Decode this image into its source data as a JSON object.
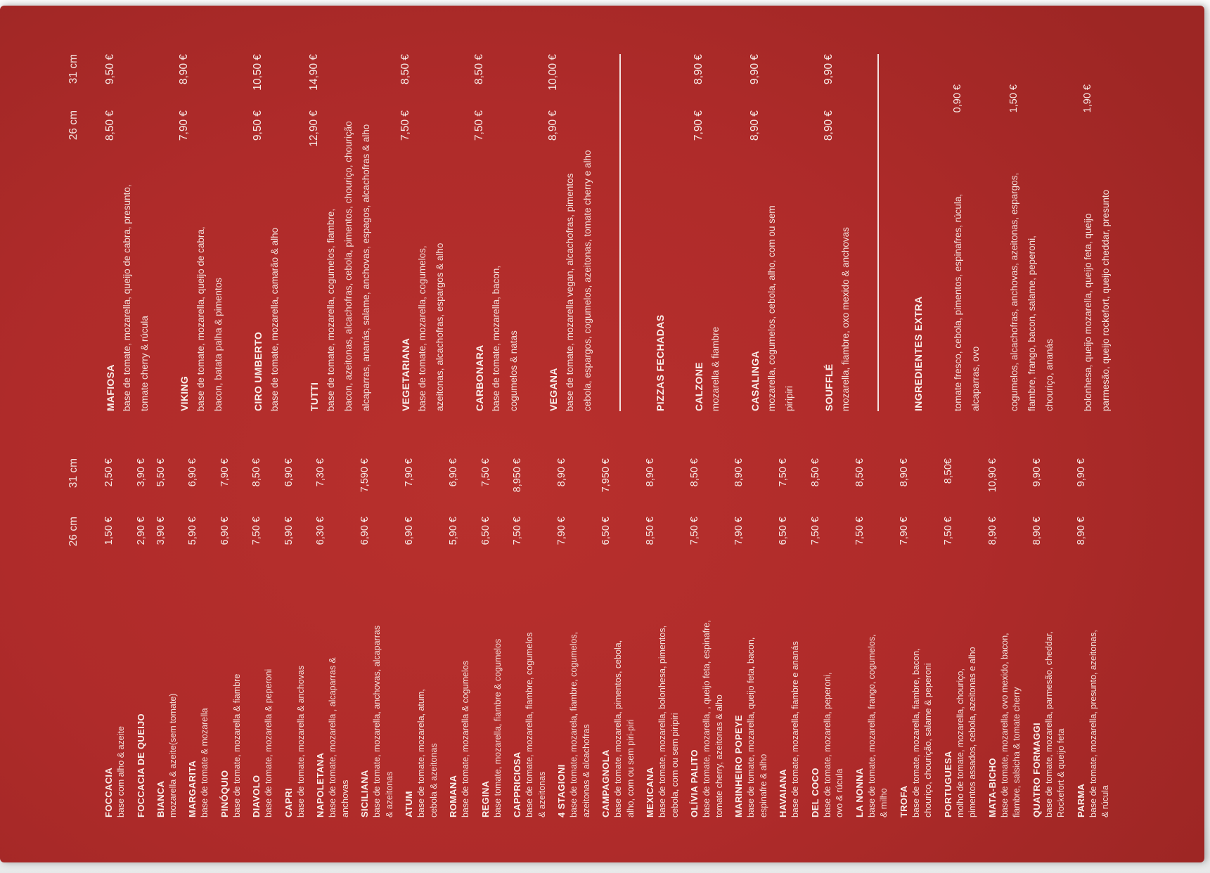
{
  "palette": {
    "backdrop": "#f1f2f2",
    "menu_red": "#af2b2a",
    "text_white": "#f6e9e5",
    "rule_white": "#faf3f1"
  },
  "size_headers": {
    "s26": "26 cm",
    "s31": "31 cm"
  },
  "column1": {
    "items": [
      {
        "name": "FOCCACIA",
        "desc": [
          "base com alho & azeite"
        ],
        "p26": "1,50 €",
        "p31": "2,50 €"
      },
      {
        "name": "FOCCACIA DE QUEIJO",
        "desc": [],
        "p26": "2,90 €",
        "p31": "3,90 €"
      },
      {
        "name": "BIANCA",
        "desc": [
          "mozarella & azeite(sem tomate)"
        ],
        "p26": "3,90 €",
        "p31": "5,50 €"
      },
      {
        "name": "MARGARITA",
        "desc": [
          "base de tomate & mozarella"
        ],
        "p26": "5,90 €",
        "p31": "6,90 €"
      },
      {
        "name": "PINÓQUIO",
        "desc": [
          "base de tomate, mozarella & fiambre"
        ],
        "p26": "6,90 €",
        "p31": "7,90 €"
      },
      {
        "name": "DIAVOLO",
        "desc": [
          "base de tomate, mozarella & peperoni"
        ],
        "p26": "7,50 €",
        "p31": "8,50 €"
      },
      {
        "name": "CAPRI",
        "desc": [
          "base de tomate, mozarella & anchovas"
        ],
        "p26": "5,90 €",
        "p31": "6,90 €"
      },
      {
        "name": "NAPOLETANA",
        "desc": [
          "base de tomate, mozarella , alcaparras &",
          "anchovas"
        ],
        "p26": "6,30 €",
        "p31": "7,30 €"
      },
      {
        "name": "SICILIANA",
        "desc": [
          "base de tomate, mozarella, anchovas, alcaparras",
          "& azeitonas"
        ],
        "p26": "6,90 €",
        "p31": "7,590 €"
      },
      {
        "name": "ATUM",
        "desc": [
          "base de tomate, mozarela, atum,",
          "cebola & azeitonas"
        ],
        "p26": "6,90 €",
        "p31": "7,90 €"
      },
      {
        "name": "ROMANA",
        "desc": [
          "base de tomate, mozarella & cogumelos"
        ],
        "p26": "5,90 €",
        "p31": "6,90 €"
      },
      {
        "name": "REGINA",
        "desc": [
          "base tomate, mozarella, fiambre & cogumelos"
        ],
        "p26": "6,50 €",
        "p31": "7,50 €"
      },
      {
        "name": "CAPPRICIOSA",
        "desc": [
          "base de tomate, mozarella, fiambre, cogumelos",
          "& azeitonas"
        ],
        "p26": "7,50 €",
        "p31": "8,950 €"
      },
      {
        "name": "4 STAGIONI",
        "desc": [
          "base de tomate, mozarela, fiambre, cogumelos,",
          "azeitonas & alcachofras"
        ],
        "p26": "7,90 €",
        "p31": "8,90 €"
      },
      {
        "name": "CAMPAGNOLA",
        "desc": [
          "base de tomate, mozarella, pimentos, cebola,",
          "alho, com ou sem piri-piri"
        ],
        "p26": "6,50 €",
        "p31": "7,950 €"
      },
      {
        "name": "MEXICANA",
        "desc": [
          "base de tomate, mozarella, bolonhesa, pimentos,",
          "cebola, com ou sem piripiri"
        ],
        "p26": "8,50 €",
        "p31": "8,90 €"
      },
      {
        "name": "OLÍVIA PALITO",
        "desc": [
          "base de tomate, mozarella, , queijo feta, espinafre,",
          "tomate cherry, azeitonas & alho"
        ],
        "p26": "7,50 €",
        "p31": "8,50 €"
      },
      {
        "name": "MARINHEIRO POPEYE",
        "desc": [
          "base de tomate, mozarella, queijo feta, bacon,",
          "espinafre & alho"
        ],
        "p26": "7,90 €",
        "p31": "8,90 €"
      },
      {
        "name": "HAVAIANA",
        "desc": [
          "base de tomate, mozarella, fiambre e ananás"
        ],
        "p26": "6,50 €",
        "p31": "7,50 €"
      },
      {
        "name": "DEL COCO",
        "desc": [
          "base de tomate, mozarella, peperoni,",
          "ovo & rúcula"
        ],
        "p26": "7,50 €",
        "p31": "8,50 €"
      },
      {
        "name": "LA NONNA",
        "desc": [
          "base de tomate, mozarella, frango, cogumelos,",
          "& milho"
        ],
        "p26": "7,50 €",
        "p31": "8,50 €"
      },
      {
        "name": "TROFA",
        "desc": [
          "base de tomate, mozarella, fiambre, bacon,",
          "chouriço, chourição, salame & peperoni"
        ],
        "p26": "7,90 €",
        "p31": "8,90 €"
      },
      {
        "name": "PORTUGUESA",
        "desc": [
          "molho de tomate, mozarella, chouriço,",
          "pimentos assados, cebola, azeitonas e alho"
        ],
        "p26": "7,50 €",
        "p31": "8,50€"
      },
      {
        "name": "MATA-BICHO",
        "desc": [
          "base de tomate, mozarella, ovo mexido, bacon,",
          "fiambre, salsicha & tomate cherry"
        ],
        "p26": "8,90 €",
        "p31": "10,90 €"
      },
      {
        "name": "QUATRO FORMAGGI",
        "desc": [
          "base de tomate, mozarella, parmesão, cheddar,",
          "Rockefort & queijo feta"
        ],
        "p26": "8,90 €",
        "p31": "9,90 €"
      },
      {
        "name": "PARMA",
        "desc": [
          "base de tomate, mozarella, presunto, azeitonas,",
          "& rúcula"
        ],
        "p26": "8,90 €",
        "p31": "9,90 €"
      }
    ]
  },
  "column2": {
    "pizzas": [
      {
        "name": "MAFIOSA",
        "desc": [
          "base de tomate, mozarella, queijo de cabra, presunto,",
          "tomate cherry & rúcula"
        ],
        "p26": "8,50 €",
        "p31": "9,50 €"
      },
      {
        "name": "VIKING",
        "desc": [
          "base de tomate, mozarella, queijo de cabra,",
          "bacon, batata palha & pimentos"
        ],
        "p26": "7,90 €",
        "p31": "8,90 €"
      },
      {
        "name": "CIRO UMBERTO",
        "desc": [
          "base de tomate, mozarella, camarão & alho"
        ],
        "p26": "9,50 €",
        "p31": "10,50 €"
      },
      {
        "name": "TUTTI",
        "desc": [
          "base de tomate, mozarella, cogumelos, fiambre,",
          "bacon, azeitonas, alcachofras, cebola, pimentos, chouriço, chourição",
          "alcaparras, ananás, salame, anchovas, espagos, alcachofras & alho"
        ],
        "p26": "12,90 €",
        "p31": "14,90 €"
      },
      {
        "name": "VEGETARIANA",
        "desc": [
          "base de tomate, mozarella, cogumelos,",
          "azeitonas, alcachofras, espargos & alho"
        ],
        "p26": "7,50 €",
        "p31": "8,50 €"
      },
      {
        "name": "CARBONARA",
        "desc": [
          "base de tomate, mozarella, bacon,",
          "cogumelos & natas"
        ],
        "p26": "7,50 €",
        "p31": "8,50 €"
      },
      {
        "name": "VEGANA",
        "desc": [
          "base de tomate, mozarella vegan, alcachofras, pimentos",
          "cebola, espargos, cogumelos, azeitonas, tomate cherry e alho"
        ],
        "p26": "8,90 €",
        "p31": "10,00 €"
      }
    ],
    "closed": {
      "title": "PIZZAS FECHADAS",
      "items": [
        {
          "name": "CALZONE",
          "desc": [
            "mozarella & fiambre"
          ],
          "p26": "7,90 €",
          "p31": "8,90 €"
        },
        {
          "name": "CASALINGA",
          "desc": [
            "mozarella, cogumelos, cebola, alho, com ou sem",
            "piripiri"
          ],
          "p26": "8,90 €",
          "p31": "9,90 €"
        },
        {
          "name": "SOUFFLÉ",
          "desc": [
            "mozarella, fiambre, oxo mexido & anchovas"
          ],
          "p26": "8,90 €",
          "p31": "9,90 €"
        }
      ]
    },
    "extras": {
      "title": "INGREDIENTES EXTRA",
      "items": [
        {
          "desc": [
            "tomate fresco, cebola, pimentos, espinafres, rúcula,",
            "alcaparras, ovo"
          ],
          "price": "0,90 €"
        },
        {
          "desc": [
            "cogumelos, alcachofras, anchovas, azeitonas, espargos,",
            "fiambre, frango, bacon, salame, peperoni,",
            "chouriço, ananás"
          ],
          "price": "1,50 €"
        },
        {
          "desc": [
            "bolonhesa, queijo mozarella, queijo feta, queijo",
            "parmesão, queijo rockefort, queijo cheddar, presunto"
          ],
          "price": "1,90 €"
        }
      ]
    }
  }
}
